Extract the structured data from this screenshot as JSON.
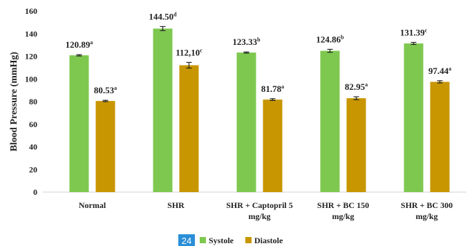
{
  "page_badge": "24",
  "colors": {
    "systole": "#7ec850",
    "diastole": "#c89600",
    "badge": "#2a8fd8"
  },
  "chart_data": {
    "type": "bar",
    "title": "",
    "xlabel": "",
    "ylabel": "Blood Pressure (mmHg)",
    "ylim": [
      0,
      160
    ],
    "yticks": [
      0,
      20,
      40,
      60,
      80,
      100,
      120,
      140,
      160
    ],
    "grid": false,
    "legend_position": "bottom",
    "categories": [
      [
        "Normal"
      ],
      [
        "SHR"
      ],
      [
        "SHR + Captopril 5",
        "mg/kg"
      ],
      [
        "SHR + BC 150",
        "mg/kg"
      ],
      [
        "SHR + BC 300",
        "mg/kg"
      ]
    ],
    "series": [
      {
        "name": "Systole",
        "color": "#7ec850",
        "values": [
          120.89,
          144.5,
          123.33,
          124.86,
          131.39
        ],
        "errors": [
          0.6,
          1.8,
          0.5,
          1.3,
          0.9
        ],
        "labels": [
          "120.89",
          "144.50",
          "123.33",
          "124.86",
          "131.39"
        ],
        "superscripts": [
          "a",
          "d",
          "b",
          "b",
          "c"
        ]
      },
      {
        "name": "Diastole",
        "color": "#c89600",
        "values": [
          80.53,
          112.1,
          81.78,
          82.95,
          97.44
        ],
        "errors": [
          0.6,
          2.5,
          0.8,
          1.3,
          1.0
        ],
        "labels": [
          "80.53",
          "112,10",
          "81.78",
          "82.95",
          "97.44"
        ],
        "superscripts": [
          "a",
          "c",
          "a",
          "a",
          "a"
        ]
      }
    ]
  }
}
